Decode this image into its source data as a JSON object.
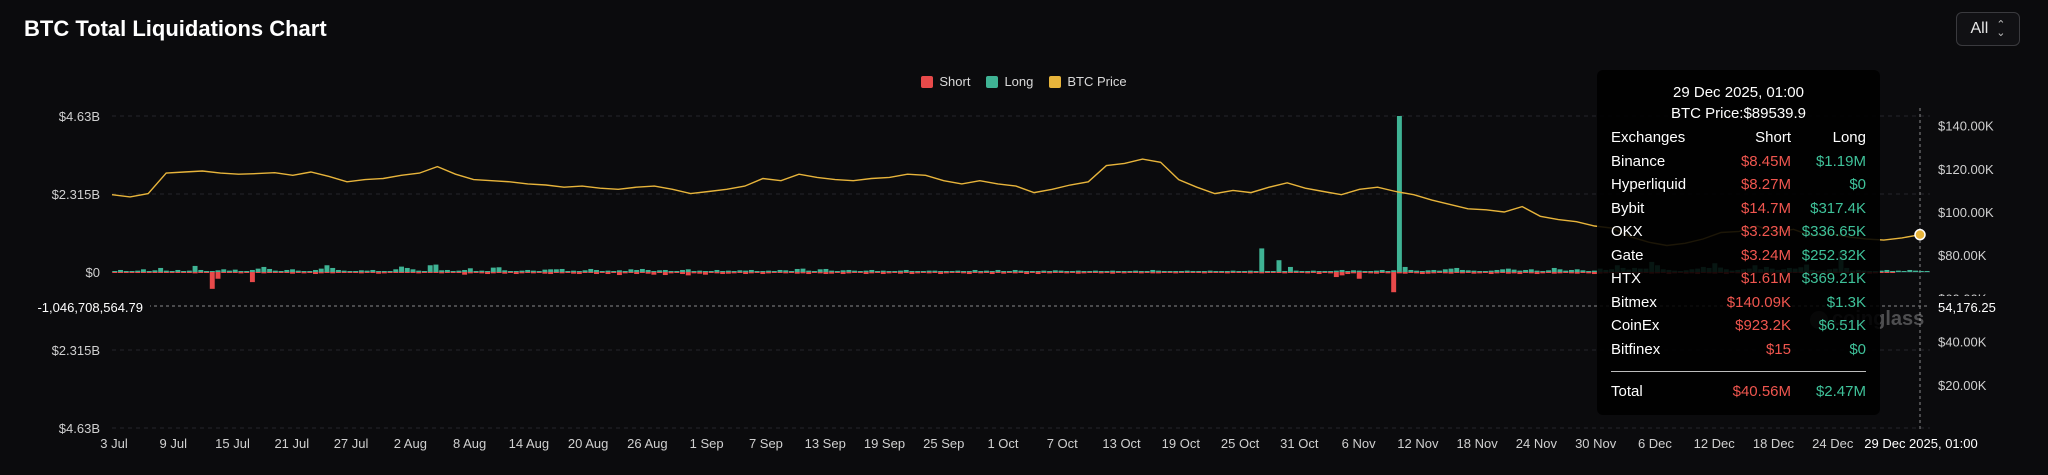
{
  "header": {
    "title": "BTC Total Liquidations Chart"
  },
  "range_select": {
    "value": "All",
    "icon": "chevron-updown-icon"
  },
  "colors": {
    "short": "#e84a4a",
    "long": "#3fb394",
    "price": "#e7b43b"
  },
  "legend": [
    {
      "label": "Short",
      "color": "#e84a4a"
    },
    {
      "label": "Long",
      "color": "#3fb394"
    },
    {
      "label": "BTC Price",
      "color": "#e7b43b"
    }
  ],
  "chart_data": {
    "type": "bar",
    "left_axis": {
      "ticks": [
        {
          "value": 4630000000,
          "label": "$4.63B"
        },
        {
          "value": 2315000000,
          "label": "$2.315B"
        },
        {
          "value": 0,
          "label": "$0"
        },
        {
          "value": -2315000000,
          "label": "$2.315B"
        },
        {
          "value": -4630000000,
          "label": "$4.63B"
        }
      ],
      "ylim": [
        -4630000000,
        4630000000
      ],
      "crosshair_label": "-1,046,708,564.79"
    },
    "right_axis": {
      "ticks": [
        "$140.00K",
        "$120.00K",
        "$100.00K",
        "$80.00K",
        "$60.00K",
        "$40.00K",
        "$20.00K"
      ],
      "tick_values": [
        140000,
        120000,
        100000,
        80000,
        60000,
        40000,
        20000
      ],
      "ylim": [
        0,
        150000
      ],
      "crosshair_label": "54,176.25"
    },
    "x_ticks": [
      "3 Jul",
      "9 Jul",
      "15 Jul",
      "21 Jul",
      "27 Jul",
      "2 Aug",
      "8 Aug",
      "14 Aug",
      "20 Aug",
      "26 Aug",
      "1 Sep",
      "7 Sep",
      "13 Sep",
      "19 Sep",
      "25 Sep",
      "1 Oct",
      "7 Oct",
      "13 Oct",
      "19 Oct",
      "25 Oct",
      "31 Oct",
      "6 Nov",
      "12 Nov",
      "18 Nov",
      "24 Nov",
      "30 Nov",
      "6 Dec",
      "12 Dec",
      "18 Dec",
      "24 Dec"
    ],
    "x_crosshair_label": "29 Dec 2025, 01:00",
    "long_values": [
      20,
      60,
      30,
      10,
      40,
      80,
      30,
      50,
      120,
      40,
      20,
      60,
      30,
      40,
      180,
      60,
      30,
      20,
      50,
      80,
      40,
      70,
      30,
      20,
      60,
      100,
      150,
      90,
      40,
      30,
      60,
      80,
      40,
      20,
      30,
      60,
      100,
      200,
      120,
      60,
      40,
      20,
      30,
      50,
      40,
      60,
      30,
      10,
      20,
      80,
      160,
      120,
      80,
      40,
      30,
      200,
      220,
      50,
      60,
      30,
      40,
      60,
      110,
      30,
      40,
      20,
      130,
      140,
      50,
      20,
      30,
      40,
      60,
      40,
      30,
      70,
      80,
      80,
      90,
      30,
      40,
      20,
      50,
      90,
      60,
      30,
      40,
      20,
      50,
      30,
      80,
      60,
      90,
      60,
      30,
      50,
      60,
      10,
      20,
      60,
      80,
      30,
      40,
      20,
      30,
      60,
      30,
      40,
      20,
      50,
      40,
      60,
      30,
      20,
      40,
      30,
      60,
      50,
      20,
      90,
      100,
      40,
      30,
      80,
      90,
      40,
      30,
      50,
      60,
      40,
      30,
      40,
      60,
      20,
      40,
      30,
      20,
      40,
      60,
      30,
      20,
      30,
      40,
      40,
      20,
      30,
      20,
      40,
      20,
      30,
      60,
      30,
      40,
      20,
      60,
      30,
      20,
      60,
      40,
      30,
      20,
      20,
      40,
      30,
      50,
      40,
      20,
      30,
      40,
      20,
      30,
      40,
      20,
      30,
      40,
      30,
      20,
      30,
      40,
      20,
      30,
      60,
      40,
      30,
      20,
      30,
      20,
      40,
      30,
      30,
      20,
      40,
      20,
      10,
      30,
      40,
      20,
      30,
      40,
      20,
      700,
      20,
      20,
      350,
      20,
      150,
      40,
      20,
      30,
      40,
      20,
      30,
      20,
      40,
      60,
      30,
      50,
      40,
      30,
      20,
      40,
      60,
      30,
      50,
      4630,
      150,
      60,
      40,
      30,
      50,
      60,
      40,
      80,
      100,
      120,
      60,
      50,
      40,
      30,
      20,
      40,
      60,
      80,
      100,
      70,
      40,
      60,
      80,
      40,
      30,
      50,
      120,
      80,
      40,
      60,
      80,
      50,
      30,
      40,
      100,
      60,
      80,
      200,
      120,
      70,
      120,
      100,
      100,
      300,
      200,
      80,
      60,
      40,
      30,
      50,
      80,
      100,
      150,
      120,
      260,
      130,
      80,
      40,
      60,
      80,
      100,
      200,
      80,
      150,
      100,
      60,
      80,
      120,
      100,
      140,
      220,
      60,
      40,
      40,
      80,
      100,
      600,
      120,
      40,
      60,
      40,
      20,
      30,
      40,
      60,
      30,
      40,
      20,
      60,
      40,
      30,
      20
    ],
    "short_values": [
      10,
      20,
      30,
      10,
      30,
      20,
      30,
      20,
      20,
      20,
      30,
      10,
      20,
      30,
      40,
      20,
      30,
      500,
      200,
      20,
      30,
      30,
      40,
      20,
      300,
      20,
      40,
      30,
      30,
      20,
      30,
      50,
      20,
      40,
      30,
      60,
      40,
      30,
      40,
      20,
      30,
      20,
      30,
      40,
      20,
      30,
      50,
      40,
      30,
      20,
      20,
      30,
      30,
      40,
      20,
      30,
      20,
      40,
      20,
      30,
      30,
      80,
      40,
      30,
      40,
      60,
      40,
      20,
      50,
      20,
      60,
      40,
      30,
      40,
      30,
      50,
      60,
      30,
      40,
      30,
      50,
      60,
      30,
      20,
      60,
      30,
      60,
      30,
      90,
      40,
      30,
      60,
      30,
      50,
      80,
      30,
      90,
      40,
      30,
      60,
      100,
      40,
      50,
      80,
      30,
      40,
      60,
      50,
      40,
      30,
      60,
      40,
      30,
      60,
      40,
      30,
      20,
      40,
      30,
      50,
      40,
      60,
      30,
      40,
      60,
      50,
      30,
      60,
      40,
      20,
      30,
      60,
      40,
      30,
      60,
      40,
      30,
      50,
      30,
      60,
      40,
      20,
      40,
      30,
      60,
      40,
      30,
      20,
      40,
      60,
      30,
      40,
      20,
      60,
      30,
      50,
      30,
      40,
      30,
      60,
      30,
      60,
      30,
      40,
      20,
      30,
      40,
      30,
      50,
      40,
      30,
      20,
      40,
      30,
      50,
      30,
      40,
      20,
      30,
      40,
      30,
      40,
      40,
      20,
      30,
      40,
      30,
      20,
      20,
      30,
      40,
      30,
      20,
      30,
      40,
      30,
      20,
      30,
      40,
      30,
      40,
      30,
      20,
      30,
      40,
      30,
      20,
      30,
      40,
      30,
      60,
      30,
      40,
      150,
      100,
      60,
      40,
      200,
      30,
      40,
      50,
      30,
      40,
      600,
      40,
      50,
      30,
      40,
      60,
      50,
      40,
      30,
      40,
      50,
      30,
      40,
      30,
      50,
      40,
      30,
      60,
      40,
      30,
      50,
      40,
      60,
      30,
      40,
      60,
      40,
      30,
      50,
      40,
      30,
      40,
      50,
      30,
      40,
      60,
      50,
      40,
      30,
      40,
      30,
      40,
      30,
      40,
      30,
      50,
      40,
      30,
      60,
      40,
      30,
      50,
      40,
      60,
      30,
      40,
      50,
      30,
      60,
      30,
      40,
      60,
      30,
      40,
      30,
      40,
      50,
      30,
      40,
      30,
      20,
      30,
      40,
      30,
      20,
      30,
      40,
      30,
      20,
      30,
      20,
      40,
      30,
      50,
      40,
      30,
      20,
      30
    ],
    "price_values": [
      108000,
      107000,
      108500,
      118000,
      118500,
      119000,
      118000,
      117500,
      117800,
      118200,
      117000,
      118500,
      116500,
      114000,
      115000,
      115500,
      117000,
      118000,
      121000,
      117500,
      115000,
      114500,
      114000,
      113000,
      112500,
      111500,
      112000,
      111000,
      110500,
      111500,
      112000,
      110500,
      108500,
      109500,
      110500,
      112000,
      115500,
      114500,
      117500,
      116000,
      115000,
      114500,
      115500,
      116000,
      117500,
      117000,
      114500,
      113000,
      114500,
      113000,
      112000,
      109000,
      110500,
      112500,
      114000,
      121500,
      122500,
      124500,
      123000,
      115000,
      111500,
      108500,
      110000,
      109000,
      111500,
      113500,
      111000,
      109500,
      108000,
      110500,
      111500,
      109500,
      108000,
      105500,
      103500,
      101500,
      101000,
      100000,
      102500,
      98000,
      96500,
      95500,
      93500,
      92500,
      88500,
      86000,
      84500,
      85500,
      87500,
      90500,
      91000,
      93500,
      90500,
      92000,
      89000,
      90000,
      88500,
      87500,
      87000,
      88000,
      89500
    ]
  },
  "tooltip": {
    "date": "29 Dec 2025, 01:00",
    "price": "BTC Price:$89539.9",
    "headers": {
      "exchange": "Exchanges",
      "short": "Short",
      "long": "Long"
    },
    "rows": [
      {
        "exchange": "Binance",
        "short": "$8.45M",
        "long": "$1.19M"
      },
      {
        "exchange": "Hyperliquid",
        "short": "$8.27M",
        "long": "$0"
      },
      {
        "exchange": "Bybit",
        "short": "$14.7M",
        "long": "$317.4K"
      },
      {
        "exchange": "OKX",
        "short": "$3.23M",
        "long": "$336.65K"
      },
      {
        "exchange": "Gate",
        "short": "$3.24M",
        "long": "$252.32K"
      },
      {
        "exchange": "HTX",
        "short": "$1.61M",
        "long": "$369.21K"
      },
      {
        "exchange": "Bitmex",
        "short": "$140.09K",
        "long": "$1.3K"
      },
      {
        "exchange": "CoinEx",
        "short": "$923.2K",
        "long": "$6.51K"
      },
      {
        "exchange": "Bitfinex",
        "short": "$15",
        "long": "$0"
      }
    ],
    "total": {
      "label": "Total",
      "short": "$40.56M",
      "long": "$2.47M"
    }
  },
  "watermark": {
    "text": "coinglass",
    "icon": "coinglass-logo-icon"
  }
}
